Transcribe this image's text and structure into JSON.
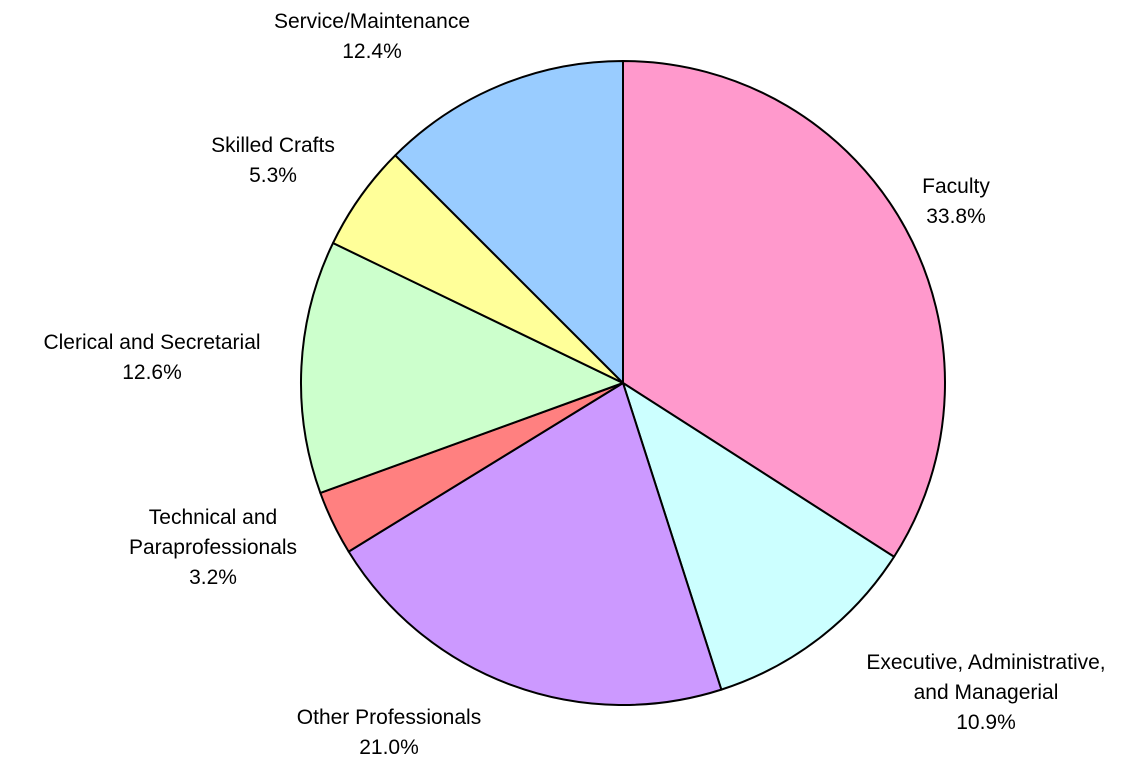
{
  "chart_data": {
    "type": "pie",
    "title": "",
    "start_angle_deg": 90,
    "direction": "clockwise",
    "slices": [
      {
        "label_lines": [
          "Faculty"
        ],
        "percent_text": "33.8%",
        "value": 33.8,
        "color": "#FF99CC"
      },
      {
        "label_lines": [
          "Executive, Administrative,",
          "and Managerial"
        ],
        "percent_text": "10.9%",
        "value": 10.9,
        "color": "#CCFFFF"
      },
      {
        "label_lines": [
          "Other Professionals"
        ],
        "percent_text": "21.0%",
        "value": 21.0,
        "color": "#CC99FF"
      },
      {
        "label_lines": [
          "Technical and",
          "Paraprofessionals"
        ],
        "percent_text": "3.2%",
        "value": 3.2,
        "color": "#FF8080"
      },
      {
        "label_lines": [
          "Clerical and Secretarial"
        ],
        "percent_text": "12.6%",
        "value": 12.6,
        "color": "#CCFFCC"
      },
      {
        "label_lines": [
          "Skilled Crafts"
        ],
        "percent_text": "5.3%",
        "value": 5.3,
        "color": "#FFFF99"
      },
      {
        "label_lines": [
          "Service/Maintenance"
        ],
        "percent_text": "12.4%",
        "value": 12.4,
        "color": "#99CCFF"
      }
    ]
  }
}
